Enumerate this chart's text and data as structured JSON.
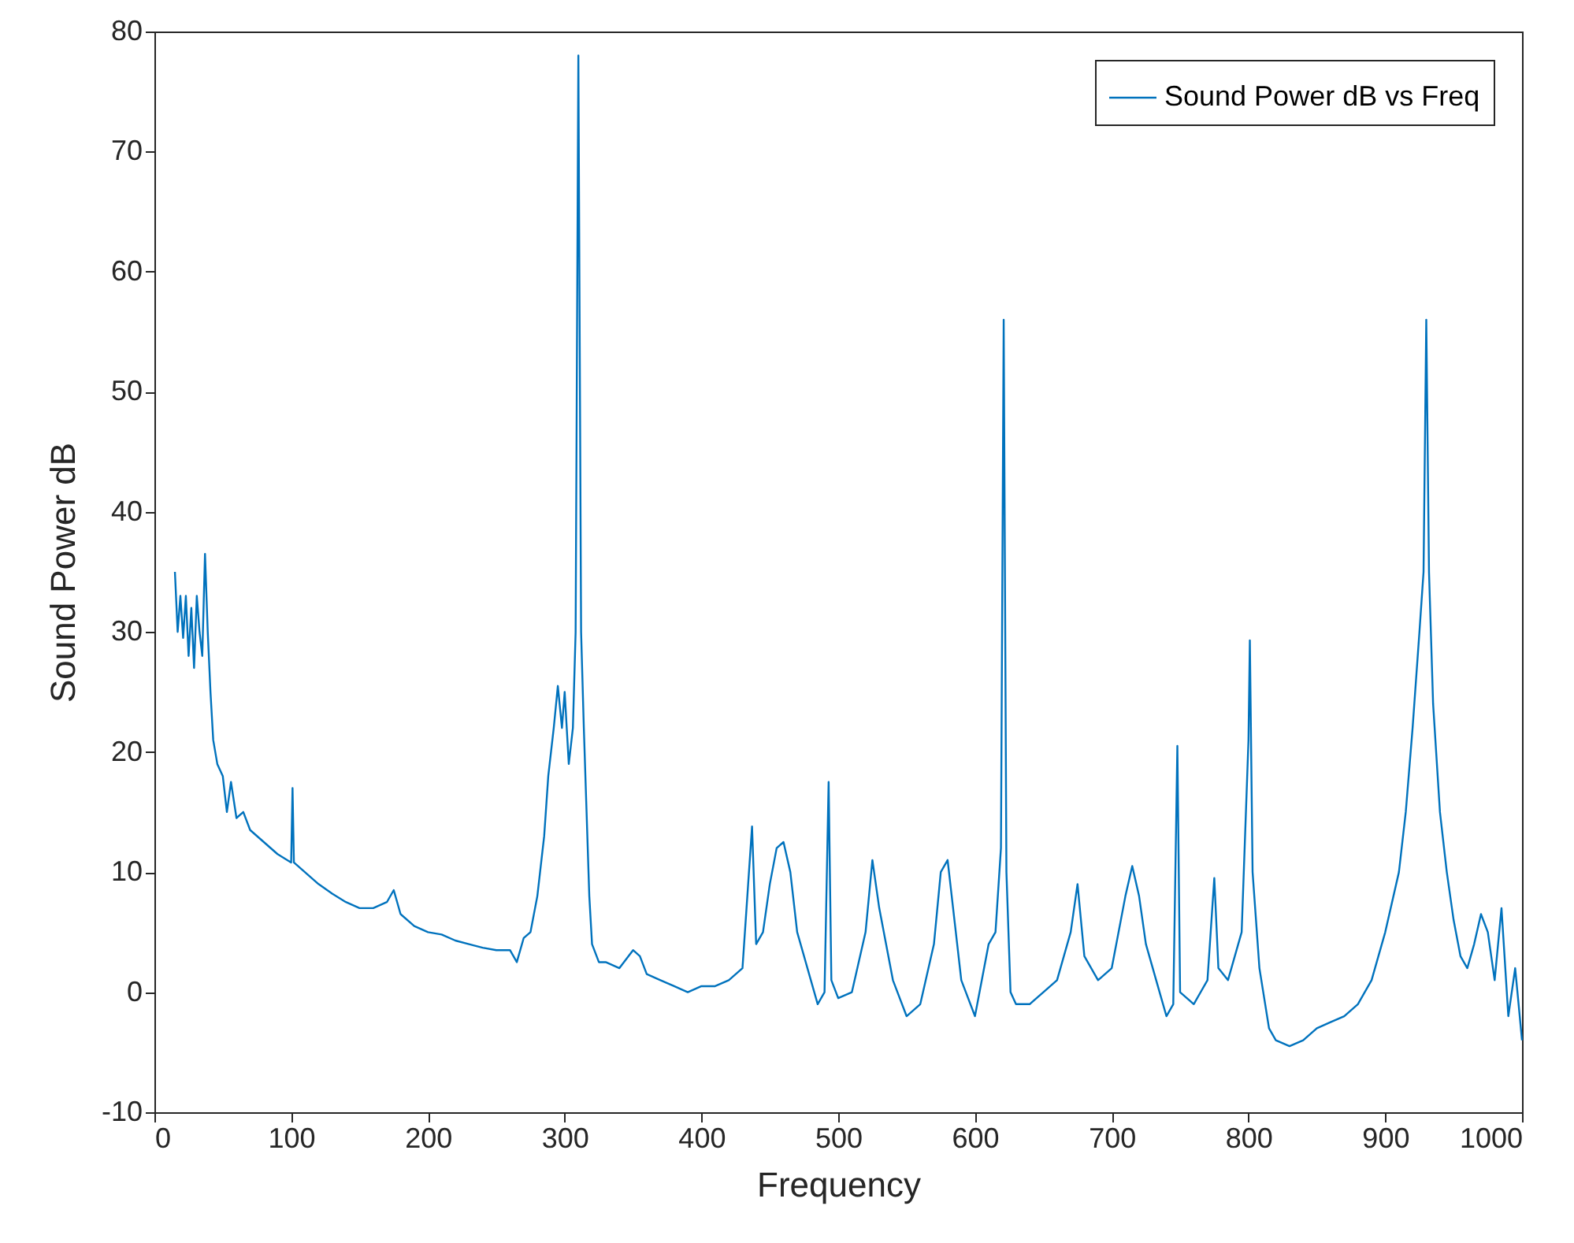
{
  "chart_data": {
    "type": "line",
    "xlabel": "Frequency",
    "ylabel": "Sound Power dB",
    "xlim": [
      0,
      1000
    ],
    "xticks": [
      0,
      100,
      200,
      300,
      400,
      500,
      600,
      700,
      800,
      900,
      1000
    ],
    "ylim": [
      -10,
      80
    ],
    "yticks": [
      -10,
      0,
      10,
      20,
      30,
      40,
      50,
      60,
      70,
      80
    ],
    "grid": false,
    "legend": "top right",
    "line_style": "solid",
    "series": [
      {
        "name": "Sound Power dB vs Freq",
        "color": "#0072bd",
        "x": [
          15,
          17,
          19,
          21,
          23,
          25,
          27,
          29,
          31,
          33,
          35,
          37,
          39,
          41,
          43,
          46,
          50,
          53,
          56,
          60,
          65,
          70,
          80,
          90,
          100,
          101,
          102,
          110,
          120,
          130,
          140,
          150,
          160,
          170,
          175,
          180,
          190,
          200,
          210,
          220,
          230,
          240,
          250,
          260,
          265,
          270,
          275,
          280,
          285,
          288,
          292,
          295,
          298,
          300,
          303,
          306,
          308,
          310,
          312,
          314,
          316,
          318,
          320,
          325,
          330,
          340,
          350,
          355,
          360,
          370,
          380,
          390,
          400,
          410,
          420,
          430,
          437,
          440,
          445,
          450,
          455,
          460,
          465,
          470,
          480,
          485,
          490,
          493,
          495,
          500,
          510,
          520,
          525,
          530,
          540,
          550,
          560,
          570,
          575,
          580,
          585,
          590,
          600,
          610,
          615,
          619,
          621,
          623,
          626,
          630,
          640,
          650,
          660,
          670,
          675,
          680,
          690,
          700,
          710,
          715,
          720,
          725,
          735,
          740,
          745,
          748,
          750,
          760,
          770,
          775,
          778,
          785,
          795,
          800,
          801,
          803,
          808,
          815,
          820,
          830,
          840,
          850,
          860,
          870,
          880,
          890,
          895,
          900,
          910,
          915,
          920,
          925,
          928,
          930,
          932,
          935,
          940,
          945,
          950,
          955,
          960,
          965,
          970,
          975,
          980,
          985,
          990,
          995,
          1000
        ],
        "values": [
          35,
          30,
          33,
          29.5,
          33,
          28,
          32,
          27,
          33,
          30,
          28,
          36.5,
          30,
          25,
          21,
          19,
          18,
          15,
          17.5,
          14.5,
          15,
          13.5,
          12.5,
          11.5,
          10.8,
          17,
          10.8,
          10,
          9,
          8.2,
          7.5,
          7,
          7,
          7.5,
          8.5,
          6.5,
          5.5,
          5,
          4.8,
          4.3,
          4,
          3.7,
          3.5,
          3.5,
          2.5,
          4.5,
          5,
          8,
          13,
          18,
          22,
          25.5,
          22,
          25,
          19,
          22,
          30,
          78,
          30,
          22,
          15,
          8,
          4,
          2.5,
          2.5,
          2,
          3.5,
          3,
          1.5,
          1,
          0.5,
          0,
          0.5,
          0.5,
          1,
          2,
          13.8,
          4,
          5,
          9,
          12,
          12.5,
          10,
          5,
          1,
          -1,
          0,
          17.5,
          1,
          -0.5,
          0,
          5,
          11,
          7,
          1,
          -2,
          -1,
          4,
          10,
          11,
          6,
          1,
          -2,
          4,
          5,
          12,
          56,
          10,
          0,
          -1,
          -1,
          0,
          1,
          5,
          9,
          3,
          1,
          2,
          8,
          10.5,
          8,
          4,
          0,
          -2,
          -1,
          20.5,
          0,
          -1,
          1,
          9.5,
          2,
          1,
          5,
          21,
          29.3,
          10,
          2,
          -3,
          -4,
          -4.5,
          -4,
          -3,
          -2.5,
          -2,
          -1,
          1,
          3,
          5,
          10,
          15,
          22,
          30,
          35,
          56,
          35,
          24,
          15,
          10,
          6,
          3,
          2,
          4,
          6.5,
          5,
          1,
          7,
          -2,
          2,
          -4
        ]
      }
    ]
  }
}
